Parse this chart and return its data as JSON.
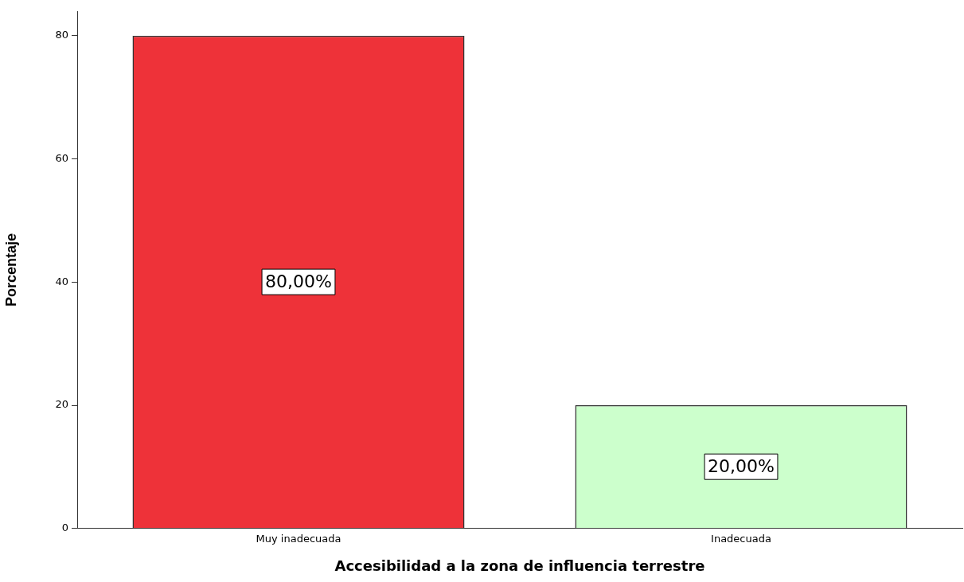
{
  "chart_data": {
    "type": "bar",
    "xlabel": "Accesibilidad a la zona de influencia terrestre",
    "ylabel": "Porcentaje",
    "categories": [
      "Muy inadecuada",
      "Inadecuada"
    ],
    "values": [
      80,
      20
    ],
    "colors": [
      "#ee3239",
      "#ccffcc"
    ],
    "value_labels": [
      "80,00%",
      "20,00%"
    ],
    "ylim": [
      0,
      84
    ],
    "yticks": [
      0,
      20,
      40,
      60,
      80
    ],
    "grid": false,
    "legend": false
  }
}
